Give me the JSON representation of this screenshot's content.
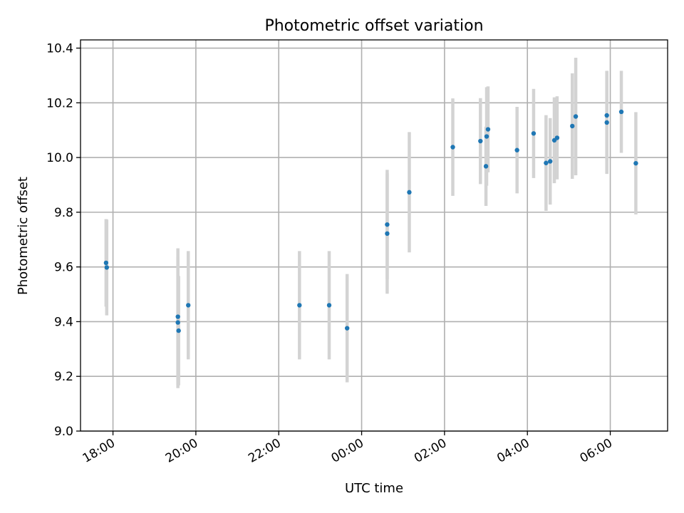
{
  "chart_data": {
    "type": "scatter",
    "title": "Photometric offset variation",
    "xlabel": "UTC time",
    "ylabel": "Photometric offset",
    "x_is_time": true,
    "xlim": [
      "17:13",
      "07:23+1"
    ],
    "ylim": [
      9.0,
      10.43
    ],
    "grid": true,
    "x_ticks": [
      "18:00",
      "20:00",
      "22:00",
      "00:00",
      "02:00",
      "04:00",
      "06:00"
    ],
    "y_ticks": [
      "9.0",
      "9.2",
      "9.4",
      "9.6",
      "9.8",
      "10.0",
      "10.2",
      "10.4"
    ],
    "colors": {
      "points": "#1f77b4",
      "error_bars": "#d3d3d3",
      "grid": "#b0b0b0"
    },
    "series": [
      {
        "points": [
          {
            "x": "17:50",
            "y": 9.615,
            "err": 0.16
          },
          {
            "x": "17:51",
            "y": 9.598,
            "err": 0.175
          },
          {
            "x": "19:34",
            "y": 9.418,
            "err": 0.25
          },
          {
            "x": "19:34",
            "y": 9.397,
            "err": 0.24
          },
          {
            "x": "19:35",
            "y": 9.367,
            "err": 0.2
          },
          {
            "x": "19:49",
            "y": 9.46,
            "err": 0.198
          },
          {
            "x": "22:30",
            "y": 9.46,
            "err": 0.198
          },
          {
            "x": "23:13",
            "y": 9.46,
            "err": 0.198
          },
          {
            "x": "23:39",
            "y": 9.376,
            "err": 0.198
          },
          {
            "x": "00:37",
            "y": 9.755,
            "err": 0.2
          },
          {
            "x": "00:37",
            "y": 9.722,
            "err": 0.22
          },
          {
            "x": "01:09",
            "y": 9.873,
            "err": 0.22
          },
          {
            "x": "02:12",
            "y": 10.038,
            "err": 0.178
          },
          {
            "x": "02:52",
            "y": 10.06,
            "err": 0.157
          },
          {
            "x": "03:00",
            "y": 9.968,
            "err": 0.145
          },
          {
            "x": "03:01",
            "y": 10.077,
            "err": 0.18
          },
          {
            "x": "03:03",
            "y": 10.103,
            "err": 0.157
          },
          {
            "x": "03:45",
            "y": 10.027,
            "err": 0.158
          },
          {
            "x": "04:09",
            "y": 10.088,
            "err": 0.163
          },
          {
            "x": "04:27",
            "y": 9.98,
            "err": 0.175
          },
          {
            "x": "04:33",
            "y": 9.986,
            "err": 0.158
          },
          {
            "x": "04:39",
            "y": 10.063,
            "err": 0.157
          },
          {
            "x": "04:43",
            "y": 10.072,
            "err": 0.152
          },
          {
            "x": "05:05",
            "y": 10.115,
            "err": 0.193
          },
          {
            "x": "05:10",
            "y": 10.15,
            "err": 0.215
          },
          {
            "x": "05:55",
            "y": 10.154,
            "err": 0.163
          },
          {
            "x": "05:55",
            "y": 10.128,
            "err": 0.188
          },
          {
            "x": "06:16",
            "y": 10.167,
            "err": 0.15
          },
          {
            "x": "06:37",
            "y": 9.979,
            "err": 0.187
          }
        ]
      }
    ]
  }
}
